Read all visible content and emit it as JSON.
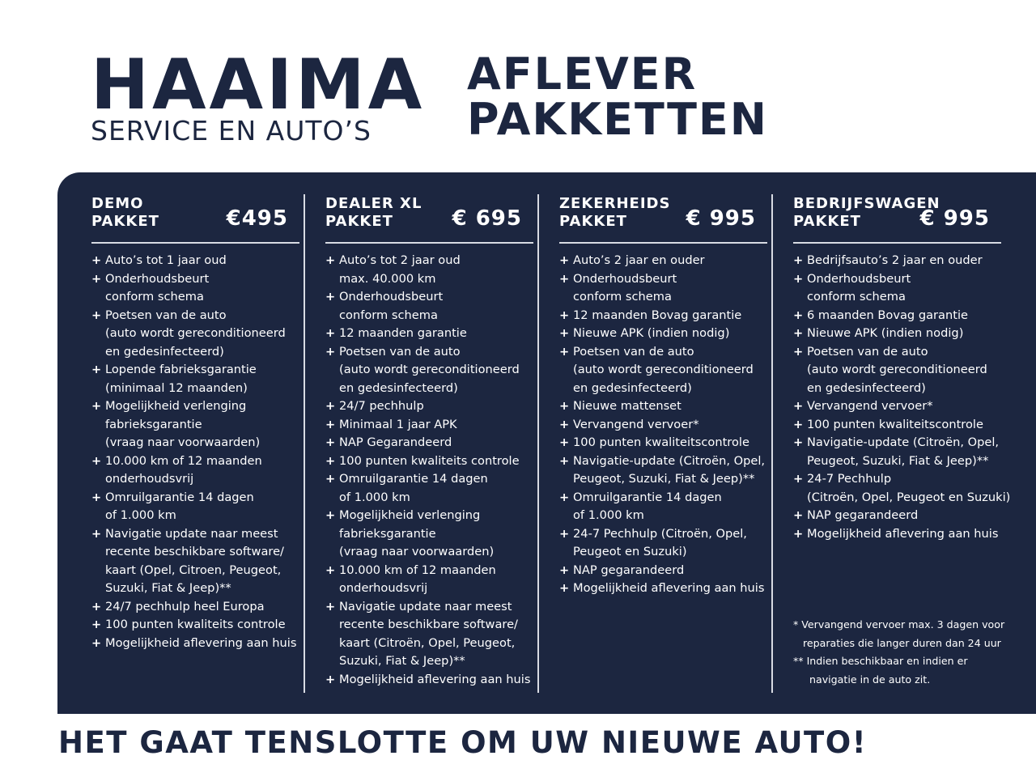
{
  "logo": {
    "main": "HAAIMA",
    "sub": "SERVICE EN AUTO’S"
  },
  "title": {
    "line1": "AFLEVER",
    "line2": "PAKKETTEN"
  },
  "colors": {
    "navy": "#1c2640",
    "text": "#ffffff"
  },
  "packages": [
    {
      "name1": "DEMO",
      "name2": "PAKKET",
      "price": "€495",
      "items": [
        [
          "Auto’s tot 1 jaar oud"
        ],
        [
          "Onderhoudsbeurt",
          "conform schema"
        ],
        [
          "Poetsen van de auto",
          "(auto wordt gereconditioneerd",
          "en gedesinfecteerd)"
        ],
        [
          "Lopende fabrieksgarantie",
          "(minimaal 12 maanden)"
        ],
        [
          "Mogelijkheid verlenging",
          "fabrieksgarantie",
          "(vraag naar voorwaarden)"
        ],
        [
          "10.000 km of 12 maanden",
          "onderhoudsvrij"
        ],
        [
          "Omruilgarantie 14 dagen",
          "of 1.000 km"
        ],
        [
          "Navigatie update naar meest",
          "recente beschikbare software/",
          "kaart (Opel, Citroen,  Peugeot,",
          "Suzuki, Fiat & Jeep)**"
        ],
        [
          "24/7 pechhulp heel Europa"
        ],
        [
          "100 punten kwaliteits controle"
        ],
        [
          "Mogelijkheid aflevering aan huis"
        ]
      ]
    },
    {
      "name1": "DEALER XL",
      "name2": "PAKKET",
      "price": "€ 695",
      "items": [
        [
          "Auto’s tot 2 jaar oud",
          "max. 40.000 km"
        ],
        [
          "Onderhoudsbeurt",
          "conform schema"
        ],
        [
          "12 maanden garantie"
        ],
        [
          "Poetsen van de auto",
          "(auto wordt gereconditioneerd",
          "en gedesinfecteerd)"
        ],
        [
          "24/7 pechhulp"
        ],
        [
          "Minimaal 1 jaar APK"
        ],
        [
          "NAP Gegarandeerd"
        ],
        [
          "100 punten kwaliteits controle"
        ],
        [
          "Omruilgarantie 14 dagen",
          "of 1.000 km"
        ],
        [
          "Mogelijkheid verlenging",
          "fabrieksgarantie",
          "(vraag naar voorwaarden)"
        ],
        [
          "10.000 km of 12 maanden",
          "onderhoudsvrij"
        ],
        [
          "Navigatie update naar meest",
          "recente beschikbare software/",
          "kaart (Citroën, Opel, Peugeot,",
          "Suzuki, Fiat & Jeep)**"
        ],
        [
          "Mogelijkheid aflevering aan huis"
        ]
      ]
    },
    {
      "name1": "ZEKERHEIDS",
      "name2": "PAKKET",
      "price": "€ 995",
      "items": [
        [
          "Auto’s 2 jaar en ouder"
        ],
        [
          "Onderhoudsbeurt",
          "conform schema"
        ],
        [
          "12 maanden Bovag garantie"
        ],
        [
          "Nieuwe APK (indien nodig)"
        ],
        [
          "Poetsen van de auto",
          "(auto wordt gereconditioneerd",
          "en gedesinfecteerd)"
        ],
        [
          "Nieuwe mattenset"
        ],
        [
          "Vervangend vervoer*"
        ],
        [
          "100 punten kwaliteitscontrole"
        ],
        [
          "Navigatie-update (Citroën, Opel,",
          "Peugeot, Suzuki, Fiat & Jeep)**"
        ],
        [
          "Omruilgarantie 14 dagen",
          "of 1.000 km"
        ],
        [
          "24-7 Pechhulp (Citroën, Opel,",
          "Peugeot en Suzuki)"
        ],
        [
          "NAP gegarandeerd"
        ],
        [
          "Mogelijkheid aflevering aan huis"
        ]
      ]
    },
    {
      "name1": "BEDRIJFSWAGEN",
      "name2": "PAKKET",
      "price": "€ 995",
      "items": [
        [
          "Bedrijfsauto’s 2 jaar en ouder"
        ],
        [
          "Onderhoudsbeurt",
          "conform schema"
        ],
        [
          "6 maanden Bovag garantie"
        ],
        [
          "Nieuwe APK (indien nodig)"
        ],
        [
          "Poetsen van de auto",
          "(auto wordt gereconditioneerd",
          "en gedesinfecteerd)"
        ],
        [
          "Vervangend vervoer*"
        ],
        [
          "100 punten kwaliteitscontrole"
        ],
        [
          "Navigatie-update (Citroën, Opel,",
          "Peugeot, Suzuki, Fiat & Jeep)**"
        ],
        [
          "24-7 Pechhulp",
          "(Citroën, Opel, Peugeot en Suzuki)"
        ],
        [
          "NAP gegarandeerd"
        ],
        [
          "Mogelijkheid aflevering aan huis"
        ]
      ]
    }
  ],
  "bullet": "+",
  "notes": [
    "* Vervangend vervoer max. 3 dagen voor",
    "   reparaties die langer duren dan 24 uur",
    "** Indien beschikbaar en indien er",
    "     navigatie in de auto zit."
  ],
  "slogan": "HET GAAT TENSLOTTE OM UW NIEUWE AUTO!"
}
